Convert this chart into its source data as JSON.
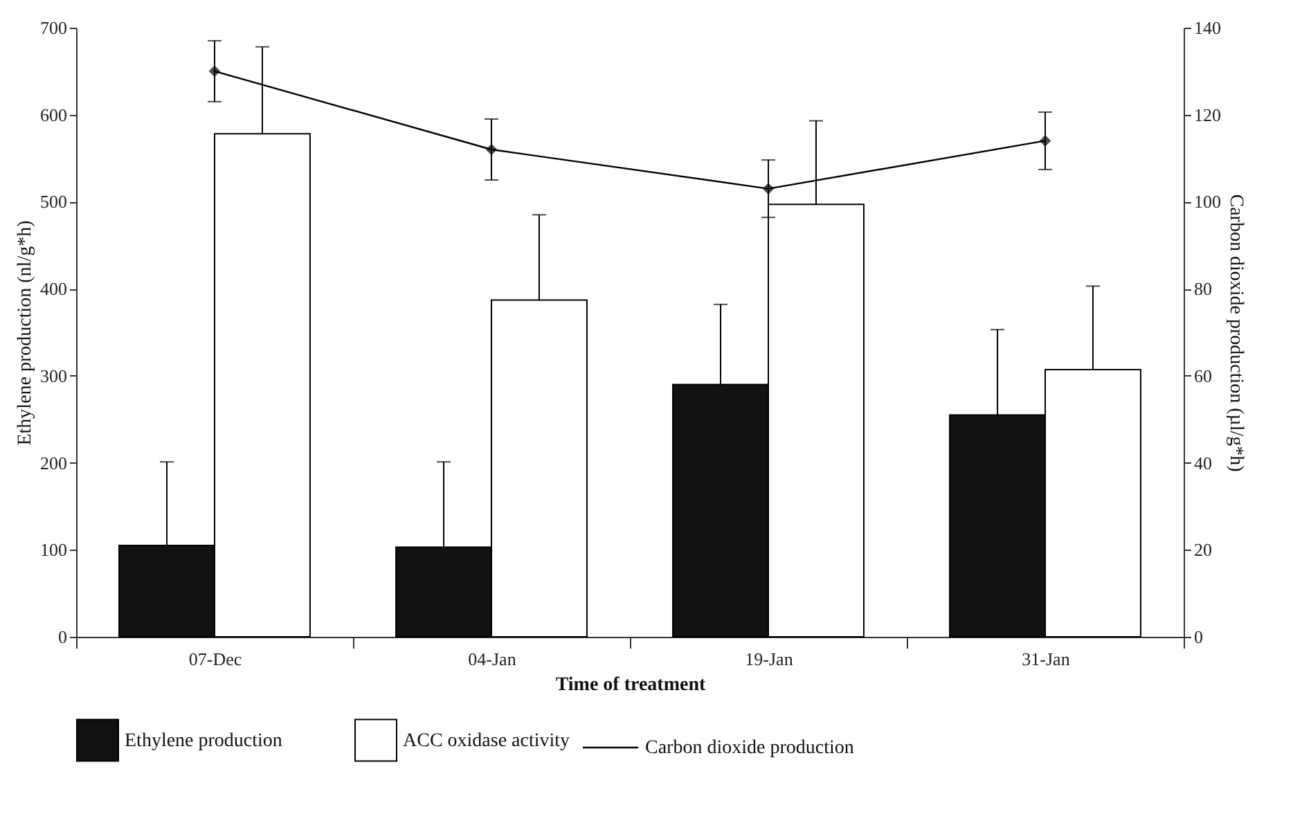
{
  "chart_data": {
    "type": "bar",
    "xlabel": "Time of treatment",
    "ylabel": "Ethylene production (nl/g*h)",
    "y2label": "Carbon dioxide production (µl/g*h)",
    "categories": [
      "07-Dec",
      "04-Jan",
      "19-Jan",
      "31-Jan"
    ],
    "series": [
      {
        "name": "Ethylene production",
        "color": "#111111",
        "values": [
          105,
          103,
          290,
          255
        ],
        "errors": [
          [
            105,
            201
          ],
          [
            103,
            201
          ],
          [
            290,
            382
          ],
          [
            255,
            353
          ]
        ]
      },
      {
        "name": "ACC oxidase activity",
        "color": "#ffffff",
        "values": [
          578,
          387,
          497,
          307
        ],
        "errors": [
          [
            578,
            678
          ],
          [
            387,
            485
          ],
          [
            497,
            593
          ],
          [
            307,
            403
          ]
        ]
      },
      {
        "name": "Carbon dioxide production",
        "type": "line",
        "axis": "y2",
        "color": "#000000",
        "marker": "diamond",
        "values": [
          130,
          112,
          103,
          114
        ],
        "errors": [
          7,
          7,
          6.6,
          6.6
        ]
      }
    ],
    "ylim": [
      0,
      700
    ],
    "yticks": [
      0,
      100,
      200,
      300,
      400,
      500,
      600,
      700
    ],
    "y2lim": [
      0,
      140
    ],
    "y2ticks": [
      0,
      20,
      40,
      60,
      80,
      100,
      120,
      140
    ],
    "grid": false,
    "legend": "bottom"
  }
}
